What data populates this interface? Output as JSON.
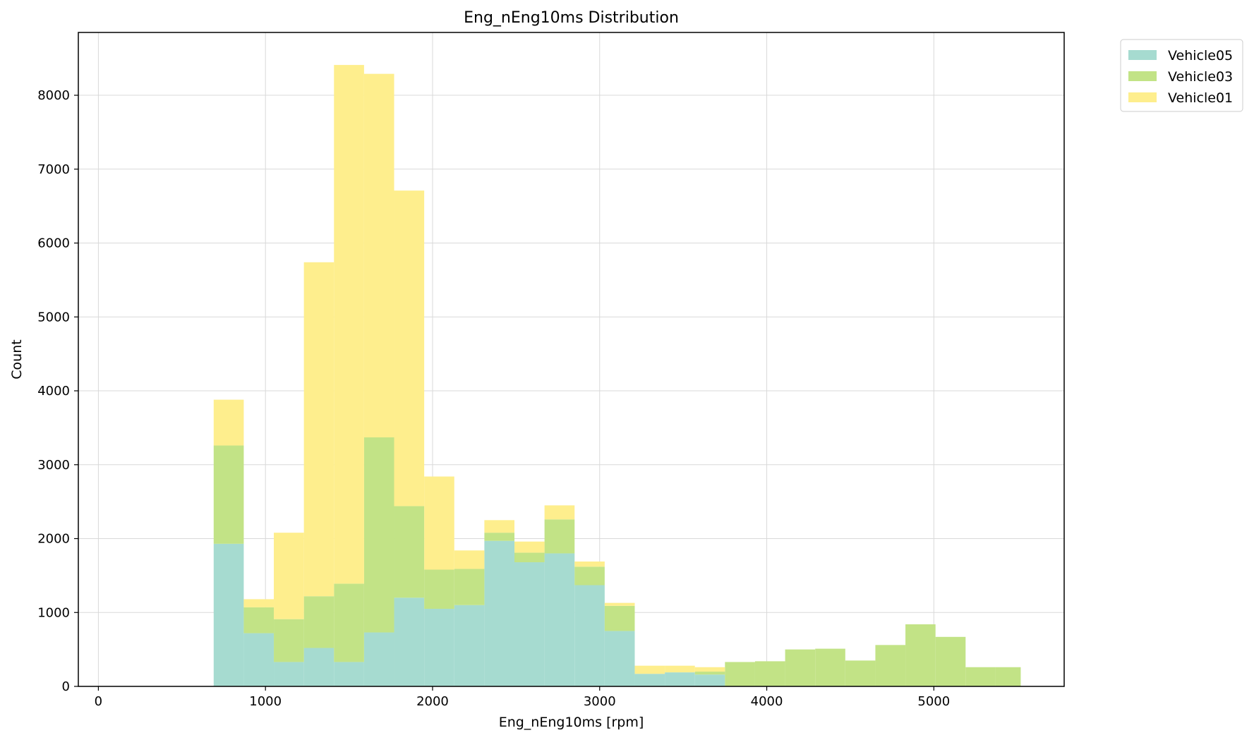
{
  "chart_data": {
    "type": "bar",
    "subtype": "stacked-histogram",
    "title": "Eng_nEng10ms Distribution",
    "xlabel": "Eng_nEng10ms [rpm]",
    "ylabel": "Count",
    "xlim": [
      -120,
      5780
    ],
    "ylim": [
      0,
      8850
    ],
    "xticks": [
      0,
      1000,
      2000,
      3000,
      4000,
      5000
    ],
    "yticks": [
      0,
      1000,
      2000,
      3000,
      4000,
      5000,
      6000,
      7000,
      8000
    ],
    "grid": true,
    "legend_position": "outside-top-right",
    "bin_edges": [
      690,
      870,
      1050,
      1230,
      1410,
      1590,
      1770,
      1950,
      2130,
      2310,
      2490,
      2670,
      2850,
      3030,
      3210,
      3390,
      3570,
      3750,
      3930,
      4110,
      4290,
      4470,
      4650,
      4830,
      5010,
      5190,
      5370,
      5520
    ],
    "series": [
      {
        "name": "Vehicle05",
        "color": "#a6dbd0",
        "values": [
          1930,
          720,
          330,
          520,
          330,
          730,
          1200,
          1050,
          1100,
          1970,
          1680,
          1800,
          1370,
          750,
          170,
          190,
          160,
          0,
          0,
          0,
          0,
          0,
          0,
          0,
          0,
          0,
          0
        ]
      },
      {
        "name": "Vehicle03",
        "color": "#c2e386",
        "values": [
          1330,
          350,
          580,
          700,
          1060,
          2640,
          1240,
          530,
          490,
          110,
          130,
          460,
          250,
          340,
          0,
          0,
          40,
          330,
          340,
          500,
          510,
          350,
          560,
          840,
          670,
          260,
          260
        ]
      },
      {
        "name": "Vehicle01",
        "color": "#feee8d",
        "values": [
          620,
          110,
          1170,
          4520,
          7020,
          4920,
          4270,
          1260,
          250,
          170,
          150,
          190,
          70,
          40,
          110,
          90,
          60,
          0,
          0,
          0,
          0,
          0,
          0,
          0,
          0,
          0,
          0
        ]
      }
    ]
  }
}
